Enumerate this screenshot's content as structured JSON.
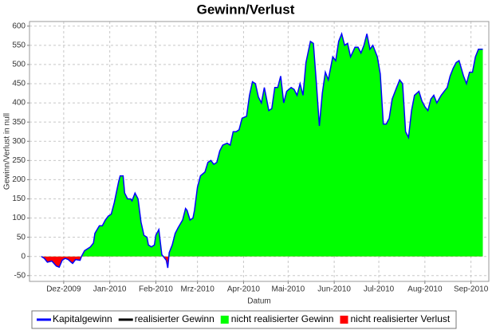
{
  "chart_data": {
    "type": "area",
    "title": "Gewinn/Verlust",
    "y_label": "Gewinn/Verlust in null",
    "x_label": "Datum",
    "x": [
      -15,
      -13,
      -11,
      -8,
      -5,
      -3,
      -1,
      1,
      3,
      5,
      6,
      8,
      11,
      12,
      14,
      16,
      18,
      20,
      21,
      24,
      26,
      28,
      30,
      32,
      34,
      37,
      38,
      40,
      41,
      43,
      45,
      46,
      48,
      50,
      52,
      54,
      56,
      57,
      59,
      61,
      62,
      64,
      66,
      67,
      69,
      70,
      71,
      73,
      75,
      77,
      80,
      82,
      83,
      85,
      87,
      88,
      90,
      92,
      95,
      97,
      99,
      101,
      103,
      105,
      107,
      110,
      112,
      114,
      116,
      118,
      120,
      123,
      125,
      127,
      129,
      131,
      133,
      135,
      138,
      140,
      142,
      144,
      146,
      148,
      150,
      153,
      155,
      157,
      159,
      161,
      163,
      166,
      168,
      170,
      172,
      174,
      176,
      178,
      181,
      183,
      185,
      187,
      189,
      191,
      193,
      196,
      198,
      200,
      202,
      204,
      206,
      208,
      211,
      213,
      215,
      217,
      219,
      221,
      224,
      226,
      228,
      230,
      232,
      234,
      236,
      239,
      241,
      243,
      245,
      247,
      249,
      251,
      254,
      256,
      258,
      260,
      262,
      264,
      266,
      269,
      271,
      273,
      275,
      277,
      279,
      282
    ],
    "series": [
      {
        "name": "Kapitalgewinn",
        "color": "#0000ff",
        "values": [
          0,
          -5,
          -15,
          -12,
          -25,
          -28,
          -10,
          -5,
          -8,
          -15,
          -18,
          -8,
          -10,
          0,
          15,
          20,
          25,
          35,
          60,
          80,
          80,
          95,
          105,
          110,
          140,
          195,
          210,
          210,
          165,
          150,
          150,
          145,
          165,
          150,
          90,
          55,
          50,
          30,
          25,
          30,
          55,
          70,
          5,
          0,
          -10,
          -30,
          10,
          30,
          60,
          75,
          95,
          125,
          120,
          95,
          100,
          120,
          180,
          210,
          220,
          245,
          250,
          240,
          245,
          275,
          290,
          295,
          290,
          325,
          325,
          330,
          360,
          365,
          420,
          455,
          450,
          415,
          400,
          440,
          380,
          385,
          440,
          440,
          470,
          400,
          430,
          440,
          435,
          420,
          450,
          420,
          505,
          560,
          555,
          450,
          340,
          425,
          480,
          460,
          520,
          510,
          560,
          580,
          550,
          555,
          520,
          545,
          545,
          530,
          550,
          580,
          540,
          550,
          520,
          475,
          345,
          345,
          360,
          410,
          440,
          460,
          450,
          325,
          310,
          380,
          420,
          430,
          405,
          390,
          380,
          410,
          420,
          400,
          420,
          430,
          440,
          470,
          490,
          505,
          510,
          470,
          450,
          480,
          480,
          520,
          540,
          540
        ]
      }
    ],
    "legend_extra": [
      {
        "name": "realisierter Gewinn",
        "color": "#000000"
      }
    ],
    "positive_fill": {
      "name": "nicht realisierter Gewinn",
      "color": "#00ff00"
    },
    "negative_fill": {
      "name": "nicht realisierter Verlust",
      "color": "#ff0000"
    },
    "xlim": [
      -23,
      286
    ],
    "xticks": [
      {
        "value": 0,
        "label": "Dez-2009"
      },
      {
        "value": 31,
        "label": "Jan-2010"
      },
      {
        "value": 62,
        "label": "Feb-2010"
      },
      {
        "value": 90,
        "label": "Mrz-2010"
      },
      {
        "value": 121,
        "label": "Apr-2010"
      },
      {
        "value": 151,
        "label": "Mai-2010"
      },
      {
        "value": 182,
        "label": "Jun-2010"
      },
      {
        "value": 212,
        "label": "Jul-2010"
      },
      {
        "value": 243,
        "label": "Aug-2010"
      },
      {
        "value": 274,
        "label": "Sep-2010"
      }
    ],
    "ylim": [
      -65,
      612
    ],
    "yticks": [
      -50,
      0,
      50,
      100,
      150,
      200,
      250,
      300,
      350,
      400,
      450,
      500,
      550,
      600
    ],
    "grid": true
  }
}
